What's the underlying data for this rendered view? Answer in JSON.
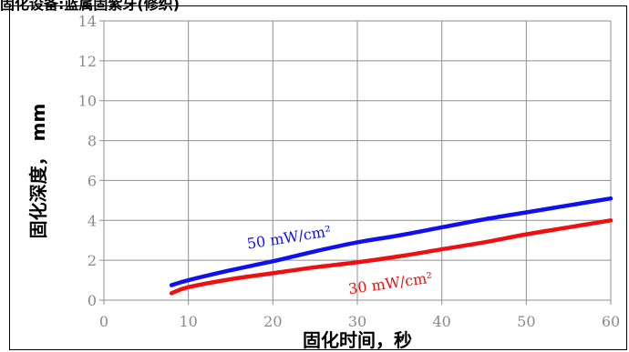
{
  "title": "固化设备:蓝属固紫牙(修织)",
  "colors": {
    "grid": "#8f8f8f",
    "tick_text": "#8a8a8a"
  },
  "chart_data": {
    "type": "line",
    "xlabel": "固化时间，秒",
    "ylabel": "固化深度， mm",
    "xlim": [
      0,
      60
    ],
    "ylim": [
      0,
      14
    ],
    "x_ticks": [
      0,
      10,
      20,
      30,
      40,
      50,
      60
    ],
    "y_ticks": [
      0,
      2,
      4,
      6,
      8,
      10,
      12,
      14
    ],
    "grid": true,
    "series": [
      {
        "name": "50 mW/cm²",
        "color": "#1010ee",
        "x": [
          8,
          10,
          15,
          20,
          25,
          30,
          35,
          40,
          45,
          50,
          55,
          60
        ],
        "y": [
          0.75,
          1.0,
          1.5,
          1.95,
          2.45,
          2.9,
          3.25,
          3.65,
          4.05,
          4.4,
          4.75,
          5.1
        ]
      },
      {
        "name": "30 mW/cm²",
        "color": "#ee1010",
        "x": [
          8,
          10,
          15,
          20,
          25,
          30,
          35,
          40,
          45,
          50,
          55,
          60
        ],
        "y": [
          0.35,
          0.65,
          1.05,
          1.35,
          1.65,
          1.9,
          2.2,
          2.55,
          2.9,
          3.3,
          3.65,
          4.0
        ]
      }
    ]
  }
}
